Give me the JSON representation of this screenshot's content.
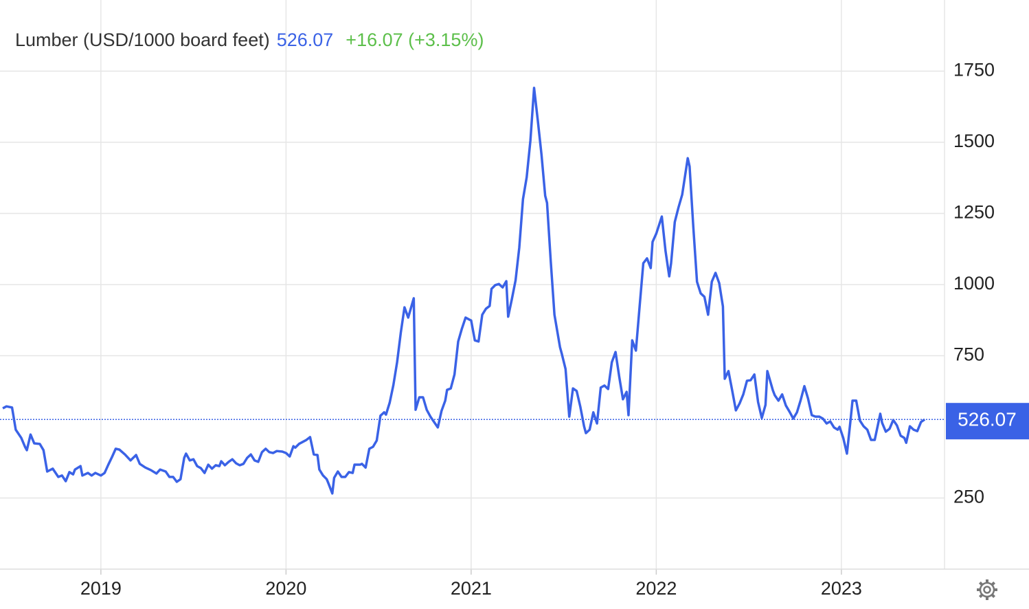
{
  "chart_data": {
    "type": "line",
    "title": "Lumber (USD/1000 board feet)",
    "change": "+16.07 (+3.15%)",
    "series": [
      {
        "color": "#3a62e6",
        "x": [
          2018.47,
          2018.49,
          2018.52,
          2018.54,
          2018.57,
          2018.59,
          2018.6,
          2018.62,
          2018.64,
          2018.67,
          2018.69,
          2018.71,
          2018.74,
          2018.77,
          2018.79,
          2018.81,
          2018.83,
          2018.85,
          2018.86,
          2018.89,
          2018.9,
          2018.93,
          2018.95,
          2018.97,
          2019.0,
          2019.02,
          2019.04,
          2019.06,
          2019.08,
          2019.1,
          2019.13,
          2019.16,
          2019.19,
          2019.21,
          2019.24,
          2019.27,
          2019.3,
          2019.32,
          2019.35,
          2019.37,
          2019.39,
          2019.41,
          2019.43,
          2019.45,
          2019.46,
          2019.48,
          2019.5,
          2019.52,
          2019.54,
          2019.56,
          2019.58,
          2019.6,
          2019.62,
          2019.64,
          2019.65,
          2019.67,
          2019.69,
          2019.71,
          2019.73,
          2019.75,
          2019.77,
          2019.79,
          2019.81,
          2019.83,
          2019.85,
          2019.87,
          2019.89,
          2019.91,
          2019.93,
          2019.95,
          2019.98,
          2020.0,
          2020.02,
          2020.04,
          2020.05,
          2020.07,
          2020.09,
          2020.11,
          2020.13,
          2020.15,
          2020.17,
          2020.18,
          2020.2,
          2020.22,
          2020.23,
          2020.25,
          2020.26,
          2020.28,
          2020.3,
          2020.32,
          2020.34,
          2020.36,
          2020.37,
          2020.4,
          2020.41,
          2020.43,
          2020.45,
          2020.47,
          2020.49,
          2020.51,
          2020.53,
          2020.54,
          2020.56,
          2020.58,
          2020.6,
          2020.62,
          2020.64,
          2020.66,
          2020.69,
          2020.7,
          2020.72,
          2020.74,
          2020.76,
          2020.78,
          2020.8,
          2020.82,
          2020.84,
          2020.86,
          2020.87,
          2020.89,
          2020.91,
          2020.93,
          2020.95,
          2020.97,
          2020.99,
          2021.0,
          2021.02,
          2021.04,
          2021.06,
          2021.08,
          2021.1,
          2021.11,
          2021.13,
          2021.15,
          2021.17,
          2021.19,
          2021.2,
          2021.22,
          2021.24,
          2021.26,
          2021.28,
          2021.3,
          2021.32,
          2021.34,
          2021.36,
          2021.38,
          2021.4,
          2021.41,
          2021.43,
          2021.45,
          2021.48,
          2021.49,
          2021.51,
          2021.53,
          2021.55,
          2021.57,
          2021.59,
          2021.61,
          2021.62,
          2021.64,
          2021.66,
          2021.68,
          2021.7,
          2021.72,
          2021.74,
          2021.76,
          2021.78,
          2021.8,
          2021.82,
          2021.84,
          2021.85,
          2021.87,
          2021.89,
          2021.91,
          2021.93,
          2021.95,
          2021.97,
          2021.98,
          2022.0,
          2022.03,
          2022.05,
          2022.07,
          2022.08,
          2022.1,
          2022.12,
          2022.14,
          2022.17,
          2022.18,
          2022.2,
          2022.22,
          2022.24,
          2022.26,
          2022.28,
          2022.3,
          2022.32,
          2022.34,
          2022.36,
          2022.37,
          2022.39,
          2022.41,
          2022.43,
          2022.45,
          2022.47,
          2022.49,
          2022.51,
          2022.53,
          2022.55,
          2022.57,
          2022.59,
          2022.6,
          2022.63,
          2022.64,
          2022.66,
          2022.68,
          2022.7,
          2022.72,
          2022.74,
          2022.76,
          2022.78,
          2022.8,
          2022.82,
          2022.84,
          2022.86,
          2022.88,
          2022.9,
          2022.92,
          2022.94,
          2022.96,
          2022.98,
          2022.99,
          2023.01,
          2023.03,
          2023.05,
          2023.06,
          2023.08,
          2023.1,
          2023.12,
          2023.14,
          2023.16,
          2023.18,
          2023.21,
          2023.22,
          2023.24,
          2023.26,
          2023.28,
          2023.3,
          2023.32,
          2023.34,
          2023.35,
          2023.37,
          2023.39,
          2023.41,
          2023.43,
          2023.45
        ],
        "values": [
          565,
          572,
          568,
          490,
          461,
          430,
          418,
          473,
          442,
          440,
          418,
          343,
          353,
          324,
          329,
          309,
          341,
          333,
          350,
          362,
          329,
          338,
          329,
          338,
          329,
          338,
          367,
          394,
          423,
          420,
          403,
          382,
          401,
          370,
          357,
          348,
          336,
          350,
          343,
          324,
          324,
          307,
          316,
          391,
          406,
          382,
          386,
          362,
          355,
          338,
          367,
          353,
          365,
          362,
          379,
          365,
          377,
          386,
          372,
          365,
          370,
          391,
          403,
          382,
          377,
          411,
          423,
          411,
          408,
          415,
          413,
          408,
          396,
          432,
          427,
          440,
          447,
          454,
          464,
          403,
          401,
          350,
          329,
          316,
          300,
          266,
          321,
          343,
          324,
          324,
          341,
          338,
          367,
          367,
          370,
          357,
          423,
          430,
          452,
          539,
          551,
          543,
          585,
          647,
          727,
          831,
          920,
          884,
          952,
          560,
          604,
          604,
          560,
          536,
          517,
          498,
          556,
          592,
          630,
          635,
          684,
          800,
          845,
          884,
          877,
          874,
          804,
          800,
          894,
          915,
          925,
          985,
          998,
          1002,
          990,
          1012,
          887,
          949,
          1015,
          1130,
          1300,
          1377,
          1505,
          1691,
          1577,
          1457,
          1312,
          1287,
          1082,
          894,
          780,
          756,
          703,
          536,
          635,
          626,
          570,
          502,
          478,
          490,
          551,
          512,
          638,
          645,
          633,
          727,
          763,
          676,
          597,
          623,
          541,
          804,
          768,
          923,
          1075,
          1092,
          1058,
          1150,
          1179,
          1239,
          1118,
          1029,
          1075,
          1220,
          1271,
          1316,
          1444,
          1415,
          1203,
          1010,
          969,
          957,
          894,
          1010,
          1041,
          1005,
          923,
          669,
          696,
          628,
          558,
          582,
          614,
          662,
          664,
          684,
          587,
          531,
          577,
          696,
          628,
          611,
          592,
          614,
          575,
          553,
          529,
          551,
          594,
          643,
          599,
          541,
          536,
          536,
          529,
          512,
          519,
          498,
          490,
          500,
          461,
          406,
          527,
          592,
          592,
          522,
          502,
          490,
          454,
          454,
          546,
          514,
          483,
          493,
          524,
          505,
          469,
          461,
          444,
          502,
          490,
          485,
          517,
          526.07
        ]
      }
    ],
    "xlim": [
      2018.455,
      2023.557
    ],
    "xticks": [
      2019,
      2020,
      2021,
      2022,
      2023
    ],
    "ylim": [
      0,
      2000
    ],
    "yticks": [
      250,
      750,
      1000,
      1250,
      1500,
      1750
    ],
    "grid": true,
    "change_color": "#5cbf4a"
  }
}
